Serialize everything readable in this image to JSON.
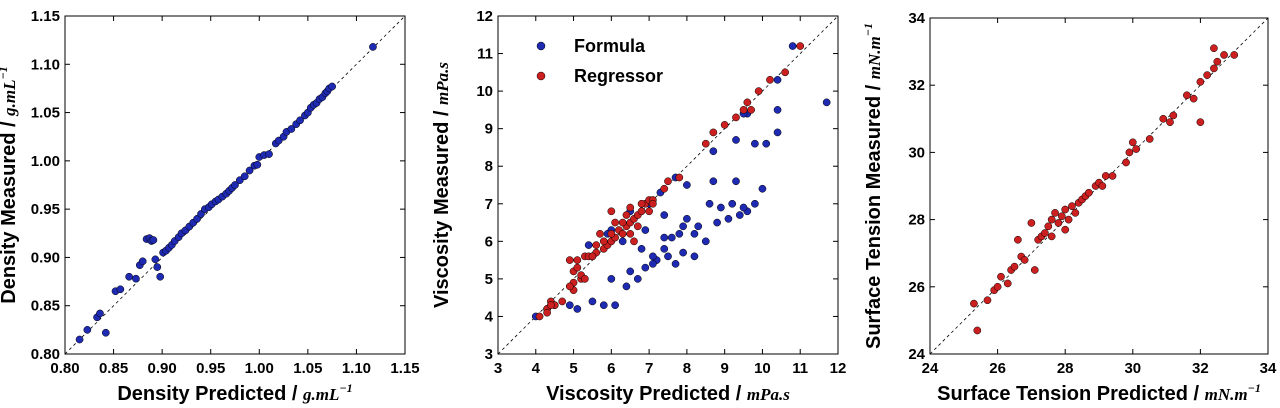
{
  "chart_data": [
    {
      "type": "scatter",
      "xlabel": "Density Predicted / ",
      "xunit": "g.mL",
      "xunit_sup": "−1",
      "ylabel": "Density Measured / ",
      "yunit": "g.mL",
      "yunit_sup": "−1",
      "xlim": [
        0.8,
        1.15
      ],
      "ylim": [
        0.8,
        1.15
      ],
      "xticks": [
        "0.80",
        "0.85",
        "0.90",
        "0.95",
        "1.00",
        "1.05",
        "1.10",
        "1.15"
      ],
      "yticks": [
        "0.80",
        "0.85",
        "0.90",
        "0.95",
        "1.00",
        "1.05",
        "1.10",
        "1.15"
      ],
      "diagonal": true,
      "series": [
        {
          "color": "#1f2ab2",
          "points": [
            [
              0.815,
              0.815
            ],
            [
              0.823,
              0.825
            ],
            [
              0.833,
              0.838
            ],
            [
              0.836,
              0.842
            ],
            [
              0.842,
              0.822
            ],
            [
              0.852,
              0.865
            ],
            [
              0.857,
              0.867
            ],
            [
              0.866,
              0.88
            ],
            [
              0.873,
              0.878
            ],
            [
              0.877,
              0.892
            ],
            [
              0.88,
              0.896
            ],
            [
              0.884,
              0.919
            ],
            [
              0.887,
              0.92
            ],
            [
              0.889,
              0.917
            ],
            [
              0.891,
              0.918
            ],
            [
              0.893,
              0.898
            ],
            [
              0.895,
              0.89
            ],
            [
              0.898,
              0.88
            ],
            [
              0.901,
              0.905
            ],
            [
              0.904,
              0.907
            ],
            [
              0.907,
              0.91
            ],
            [
              0.91,
              0.913
            ],
            [
              0.913,
              0.917
            ],
            [
              0.917,
              0.921
            ],
            [
              0.92,
              0.925
            ],
            [
              0.924,
              0.928
            ],
            [
              0.928,
              0.932
            ],
            [
              0.932,
              0.936
            ],
            [
              0.936,
              0.94
            ],
            [
              0.94,
              0.945
            ],
            [
              0.944,
              0.95
            ],
            [
              0.948,
              0.952
            ],
            [
              0.951,
              0.955
            ],
            [
              0.955,
              0.958
            ],
            [
              0.958,
              0.96
            ],
            [
              0.962,
              0.963
            ],
            [
              0.966,
              0.966
            ],
            [
              0.969,
              0.969
            ],
            [
              0.972,
              0.972
            ],
            [
              0.975,
              0.975
            ],
            [
              0.98,
              0.98
            ],
            [
              0.985,
              0.984
            ],
            [
              0.99,
              0.99
            ],
            [
              0.995,
              0.995
            ],
            [
              0.998,
              0.996
            ],
            [
              1.0,
              1.004
            ],
            [
              1.005,
              1.006
            ],
            [
              1.01,
              1.007
            ],
            [
              1.017,
              1.018
            ],
            [
              1.02,
              1.021
            ],
            [
              1.025,
              1.025
            ],
            [
              1.028,
              1.03
            ],
            [
              1.033,
              1.033
            ],
            [
              1.038,
              1.038
            ],
            [
              1.042,
              1.042
            ],
            [
              1.047,
              1.047
            ],
            [
              1.05,
              1.05
            ],
            [
              1.053,
              1.055
            ],
            [
              1.056,
              1.058
            ],
            [
              1.059,
              1.06
            ],
            [
              1.062,
              1.064
            ],
            [
              1.065,
              1.066
            ],
            [
              1.068,
              1.07
            ],
            [
              1.07,
              1.072
            ],
            [
              1.072,
              1.075
            ],
            [
              1.075,
              1.077
            ],
            [
              1.117,
              1.118
            ]
          ]
        }
      ]
    },
    {
      "type": "scatter",
      "xlabel": "Viscosity Predicted / ",
      "xunit": "mPa.s",
      "ylabel": "Viscosity Measured / ",
      "yunit": "mPa.s",
      "xlim": [
        3,
        12
      ],
      "ylim": [
        3,
        12
      ],
      "xticks": [
        "3",
        "4",
        "5",
        "6",
        "7",
        "8",
        "9",
        "10",
        "11",
        "12"
      ],
      "yticks": [
        "3",
        "4",
        "5",
        "6",
        "7",
        "8",
        "9",
        "10",
        "11",
        "12"
      ],
      "diagonal": true,
      "legend": {
        "position": "top-left"
      },
      "series": [
        {
          "name": "Formula",
          "color": "#1f2ab2",
          "points": [
            [
              4.0,
              4.0
            ],
            [
              4.3,
              4.2
            ],
            [
              4.5,
              4.3
            ],
            [
              4.9,
              4.3
            ],
            [
              5.1,
              4.2
            ],
            [
              5.5,
              4.4
            ],
            [
              5.8,
              4.3
            ],
            [
              6.1,
              4.3
            ],
            [
              6.4,
              4.8
            ],
            [
              6.7,
              5.0
            ],
            [
              6.9,
              5.3
            ],
            [
              7.2,
              5.5
            ],
            [
              7.5,
              5.6
            ],
            [
              7.7,
              5.4
            ],
            [
              7.9,
              5.7
            ],
            [
              8.2,
              6.2
            ],
            [
              8.5,
              6.0
            ],
            [
              8.8,
              6.5
            ],
            [
              9.1,
              6.6
            ],
            [
              9.4,
              6.7
            ],
            [
              9.6,
              6.8
            ],
            [
              9.8,
              7.0
            ],
            [
              10.0,
              7.4
            ],
            [
              9.3,
              7.6
            ],
            [
              8.7,
              7.6
            ],
            [
              8.0,
              7.5
            ],
            [
              7.7,
              7.7
            ],
            [
              7.3,
              7.3
            ],
            [
              7.0,
              7.0
            ],
            [
              6.5,
              6.8
            ],
            [
              6.0,
              6.3
            ],
            [
              6.3,
              6.0
            ],
            [
              6.8,
              5.8
            ],
            [
              7.4,
              6.1
            ],
            [
              7.6,
              6.1
            ],
            [
              7.8,
              6.2
            ],
            [
              8.3,
              6.4
            ],
            [
              8.6,
              7.0
            ],
            [
              8.9,
              6.9
            ],
            [
              9.2,
              7.0
            ],
            [
              9.5,
              6.9
            ],
            [
              7.1,
              5.4
            ],
            [
              7.4,
              5.8
            ],
            [
              6.5,
              5.2
            ],
            [
              6.0,
              5.0
            ],
            [
              6.9,
              6.3
            ],
            [
              7.9,
              6.4
            ],
            [
              5.9,
              6.2
            ],
            [
              5.4,
              5.9
            ],
            [
              8.2,
              5.6
            ],
            [
              8.7,
              8.4
            ],
            [
              9.3,
              8.7
            ],
            [
              9.6,
              9.4
            ],
            [
              9.8,
              8.6
            ],
            [
              10.1,
              8.6
            ],
            [
              10.4,
              8.9
            ],
            [
              10.4,
              9.5
            ],
            [
              10.4,
              10.3
            ],
            [
              10.8,
              11.2
            ],
            [
              11.7,
              9.7
            ],
            [
              9.5,
              9.4
            ],
            [
              7.4,
              6.7
            ],
            [
              7.1,
              5.6
            ],
            [
              8.0,
              6.6
            ]
          ]
        },
        {
          "name": "Regressor",
          "color": "#cc1f1f",
          "points": [
            [
              4.1,
              4.0
            ],
            [
              4.3,
              4.2
            ],
            [
              4.4,
              4.4
            ],
            [
              4.5,
              4.3
            ],
            [
              4.7,
              4.4
            ],
            [
              5.0,
              4.9
            ],
            [
              5.0,
              5.2
            ],
            [
              5.1,
              5.3
            ],
            [
              5.2,
              5.0
            ],
            [
              5.3,
              5.6
            ],
            [
              5.5,
              5.6
            ],
            [
              5.6,
              5.7
            ],
            [
              5.8,
              5.8
            ],
            [
              5.9,
              5.9
            ],
            [
              6.0,
              6.0
            ],
            [
              6.1,
              6.1
            ],
            [
              6.2,
              6.3
            ],
            [
              6.3,
              6.2
            ],
            [
              6.4,
              6.4
            ],
            [
              6.5,
              6.5
            ],
            [
              6.6,
              6.6
            ],
            [
              6.7,
              6.7
            ],
            [
              6.8,
              6.8
            ],
            [
              6.9,
              7.0
            ],
            [
              7.0,
              7.1
            ],
            [
              7.1,
              7.1
            ],
            [
              6.3,
              6.5
            ],
            [
              6.5,
              6.2
            ],
            [
              6.7,
              6.4
            ],
            [
              6.0,
              6.2
            ],
            [
              5.8,
              6.0
            ],
            [
              5.6,
              5.9
            ],
            [
              5.4,
              5.6
            ],
            [
              5.2,
              5.1
            ],
            [
              5.0,
              4.7
            ],
            [
              4.9,
              4.8
            ],
            [
              4.9,
              5.5
            ],
            [
              5.1,
              5.5
            ],
            [
              6.0,
              6.8
            ],
            [
              6.5,
              6.9
            ],
            [
              6.8,
              7.0
            ],
            [
              7.0,
              6.8
            ],
            [
              7.4,
              7.4
            ],
            [
              7.5,
              7.6
            ],
            [
              7.8,
              7.7
            ],
            [
              8.5,
              8.6
            ],
            [
              8.7,
              8.9
            ],
            [
              9.0,
              9.1
            ],
            [
              9.3,
              9.3
            ],
            [
              9.5,
              9.5
            ],
            [
              9.6,
              9.7
            ],
            [
              9.7,
              9.5
            ],
            [
              9.9,
              10.0
            ],
            [
              10.2,
              10.3
            ],
            [
              10.6,
              10.5
            ],
            [
              11.0,
              11.2
            ],
            [
              6.6,
              6.0
            ],
            [
              7.1,
              7.0
            ],
            [
              6.4,
              6.7
            ],
            [
              6.1,
              6.5
            ],
            [
              5.7,
              6.2
            ],
            [
              5.5,
              5.6
            ],
            [
              5.3,
              5.0
            ],
            [
              4.4,
              4.3
            ],
            [
              4.3,
              4.1
            ]
          ]
        }
      ]
    },
    {
      "type": "scatter",
      "xlabel": "Surface Tension Predicted / ",
      "xunit": "mN.m",
      "xunit_sup": "−1",
      "ylabel": "Surface Tension Measured / ",
      "yunit": "mN.m",
      "yunit_sup": "−1",
      "xlim": [
        24,
        34
      ],
      "ylim": [
        24,
        34
      ],
      "xticks": [
        "24",
        "26",
        "28",
        "30",
        "32",
        "34"
      ],
      "yticks": [
        "24",
        "26",
        "28",
        "30",
        "32",
        "34"
      ],
      "diagonal": true,
      "series": [
        {
          "color": "#cc1f1f",
          "points": [
            [
              25.3,
              25.5
            ],
            [
              25.4,
              24.7
            ],
            [
              25.7,
              25.6
            ],
            [
              25.9,
              25.9
            ],
            [
              26.0,
              26.0
            ],
            [
              26.1,
              26.3
            ],
            [
              26.3,
              26.1
            ],
            [
              26.4,
              26.5
            ],
            [
              26.5,
              26.6
            ],
            [
              26.6,
              27.4
            ],
            [
              26.7,
              26.9
            ],
            [
              26.8,
              26.8
            ],
            [
              27.0,
              27.9
            ],
            [
              27.1,
              26.5
            ],
            [
              27.2,
              27.4
            ],
            [
              27.3,
              27.5
            ],
            [
              27.4,
              27.6
            ],
            [
              27.5,
              27.8
            ],
            [
              27.6,
              27.5
            ],
            [
              27.6,
              28.0
            ],
            [
              27.7,
              28.2
            ],
            [
              27.8,
              27.9
            ],
            [
              27.9,
              28.1
            ],
            [
              28.0,
              28.3
            ],
            [
              28.0,
              27.7
            ],
            [
              28.1,
              28.0
            ],
            [
              28.2,
              28.4
            ],
            [
              28.3,
              28.2
            ],
            [
              28.4,
              28.5
            ],
            [
              28.5,
              28.6
            ],
            [
              28.6,
              28.7
            ],
            [
              28.7,
              28.8
            ],
            [
              28.9,
              29.0
            ],
            [
              29.0,
              29.1
            ],
            [
              29.1,
              29.0
            ],
            [
              29.2,
              29.3
            ],
            [
              29.4,
              29.3
            ],
            [
              29.8,
              29.7
            ],
            [
              29.9,
              30.0
            ],
            [
              30.0,
              30.3
            ],
            [
              30.1,
              30.1
            ],
            [
              30.5,
              30.4
            ],
            [
              30.9,
              31.0
            ],
            [
              31.1,
              30.9
            ],
            [
              31.2,
              31.1
            ],
            [
              31.6,
              31.7
            ],
            [
              31.8,
              31.6
            ],
            [
              32.0,
              32.1
            ],
            [
              32.0,
              30.9
            ],
            [
              32.2,
              32.3
            ],
            [
              32.4,
              32.5
            ],
            [
              32.4,
              33.1
            ],
            [
              32.5,
              32.7
            ],
            [
              32.7,
              32.9
            ],
            [
              33.0,
              32.9
            ]
          ]
        }
      ]
    }
  ]
}
